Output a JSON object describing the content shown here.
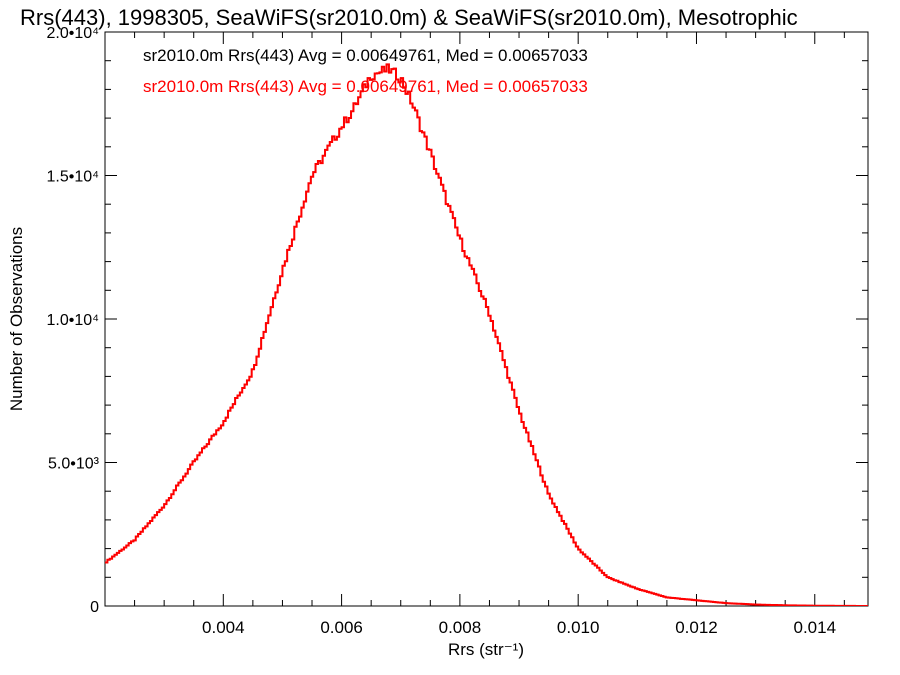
{
  "chart_data": {
    "type": "line",
    "title": "Rrs(443), 1998305, SeaWiFS(sr2010.0m) & SeaWiFS(sr2010.0m), Mesotrophic",
    "xlabel": "Rrs (str⁻¹)",
    "ylabel": "Number of Observations",
    "xlim": [
      0.002,
      0.0149
    ],
    "ylim": [
      0,
      20000
    ],
    "x_ticks": [
      {
        "value": 0.004,
        "label": "0.004"
      },
      {
        "value": 0.006,
        "label": "0.006"
      },
      {
        "value": 0.008,
        "label": "0.008"
      },
      {
        "value": 0.01,
        "label": "0.010"
      },
      {
        "value": 0.012,
        "label": "0.012"
      },
      {
        "value": 0.014,
        "label": "0.014"
      }
    ],
    "y_ticks": [
      {
        "value": 0,
        "label": "0"
      },
      {
        "value": 5000,
        "label": "5.0•10³"
      },
      {
        "value": 10000,
        "label": "1.0•10⁴"
      },
      {
        "value": 15000,
        "label": "1.5•10⁴"
      },
      {
        "value": 20000,
        "label": "2.0•10⁴"
      }
    ],
    "grid": false,
    "legend_position": "top-left",
    "series": [
      {
        "name": "sr2010.0m Rrs(443) Avg = 0.00649761, Med = 0.00657033",
        "color": "#000000",
        "x": [
          0.002,
          0.0025,
          0.003,
          0.0035,
          0.004,
          0.0045,
          0.005,
          0.0055,
          0.006,
          0.0062,
          0.0065,
          0.0068,
          0.007,
          0.0072,
          0.0075,
          0.008,
          0.0085,
          0.009,
          0.0095,
          0.01,
          0.0105,
          0.011,
          0.0115,
          0.012,
          0.0125,
          0.013,
          0.0135,
          0.014,
          0.0149
        ],
        "y": [
          1500,
          2300,
          3500,
          5000,
          6400,
          8200,
          11700,
          15000,
          16700,
          17300,
          18500,
          18700,
          18400,
          17500,
          15800,
          12800,
          10200,
          6800,
          3900,
          2000,
          1000,
          600,
          300,
          200,
          100,
          50,
          25,
          10,
          0
        ]
      },
      {
        "name": "sr2010.0m Rrs(443) Avg = 0.00649761, Med = 0.00657033",
        "color": "#ff0000",
        "x": [
          0.002,
          0.0025,
          0.003,
          0.0035,
          0.004,
          0.0045,
          0.005,
          0.0055,
          0.006,
          0.0062,
          0.0065,
          0.0068,
          0.007,
          0.0072,
          0.0075,
          0.008,
          0.0085,
          0.009,
          0.0095,
          0.01,
          0.0105,
          0.011,
          0.0115,
          0.012,
          0.0125,
          0.013,
          0.0135,
          0.014,
          0.0149
        ],
        "y": [
          1500,
          2300,
          3500,
          5000,
          6400,
          8200,
          11700,
          15000,
          16700,
          17300,
          18500,
          18700,
          18400,
          17500,
          15800,
          12800,
          10200,
          6800,
          3900,
          2000,
          1000,
          600,
          300,
          200,
          100,
          50,
          25,
          10,
          0
        ]
      }
    ]
  }
}
